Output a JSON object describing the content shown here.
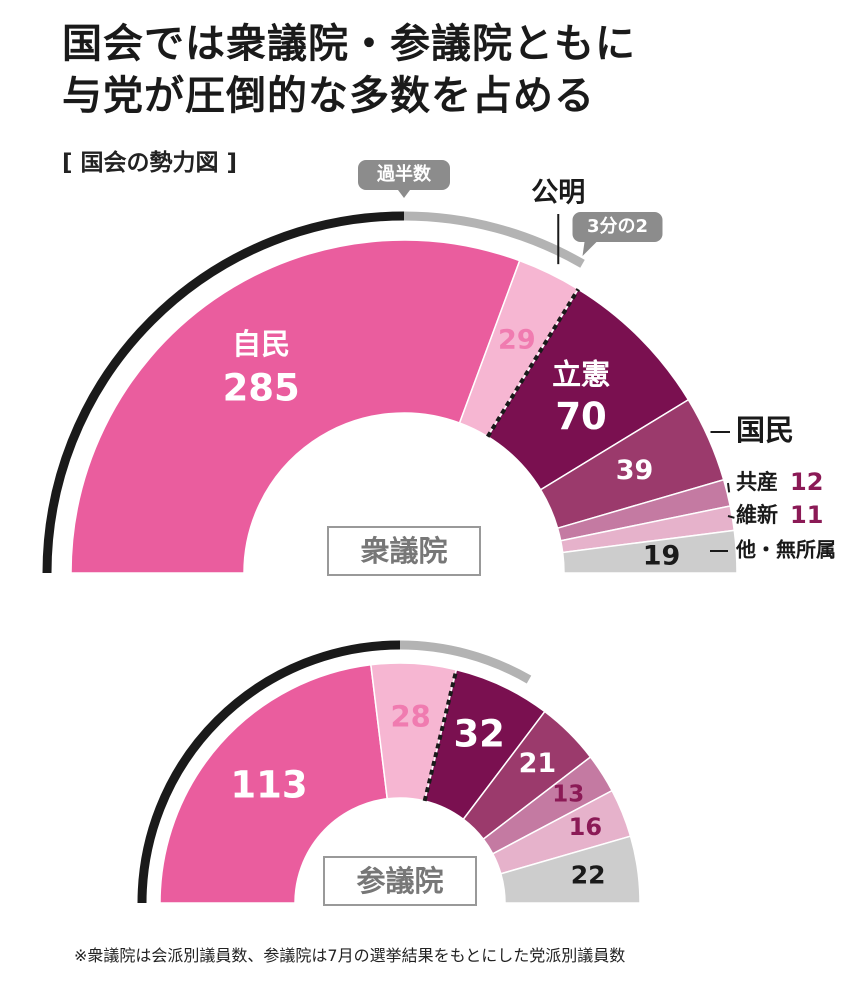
{
  "title_line1": "国会では衆議院・参議院ともに",
  "title_line2": "与党が圧倒的な多数を占める",
  "subtitle": "[ 国会の勢力図 ]",
  "footnote": "※衆議院は会派別議員数、参議院は7月の選挙結果をもとにした党派別議員数",
  "markers": {
    "majority": "過半数",
    "two_thirds": "3分の2"
  },
  "colors": {
    "jimin": "#ea5d9e",
    "komei": "#f6b6d2",
    "rikken": "#7a1050",
    "kokumin": "#9b3a6c",
    "kyosan": "#c47aa2",
    "ishin": "#e6b2cb",
    "other": "#cdcdcd",
    "arc_dark": "#1a1a1a",
    "arc_gray": "#b3b3b3",
    "accent_text": "#8b1a56"
  },
  "chart_data": [
    {
      "type": "pie",
      "name": "衆議院",
      "categories": [
        "自民",
        "公明",
        "立憲",
        "国民",
        "共産",
        "維新",
        "他・無所属"
      ],
      "values": [
        285,
        29,
        70,
        39,
        12,
        11,
        19
      ],
      "legend_labels": [
        "公明",
        "国民",
        "共産",
        "維新",
        "他・無所属"
      ]
    },
    {
      "type": "pie",
      "name": "参議院",
      "values": [
        113,
        28,
        32,
        21,
        13,
        16,
        22
      ]
    }
  ]
}
